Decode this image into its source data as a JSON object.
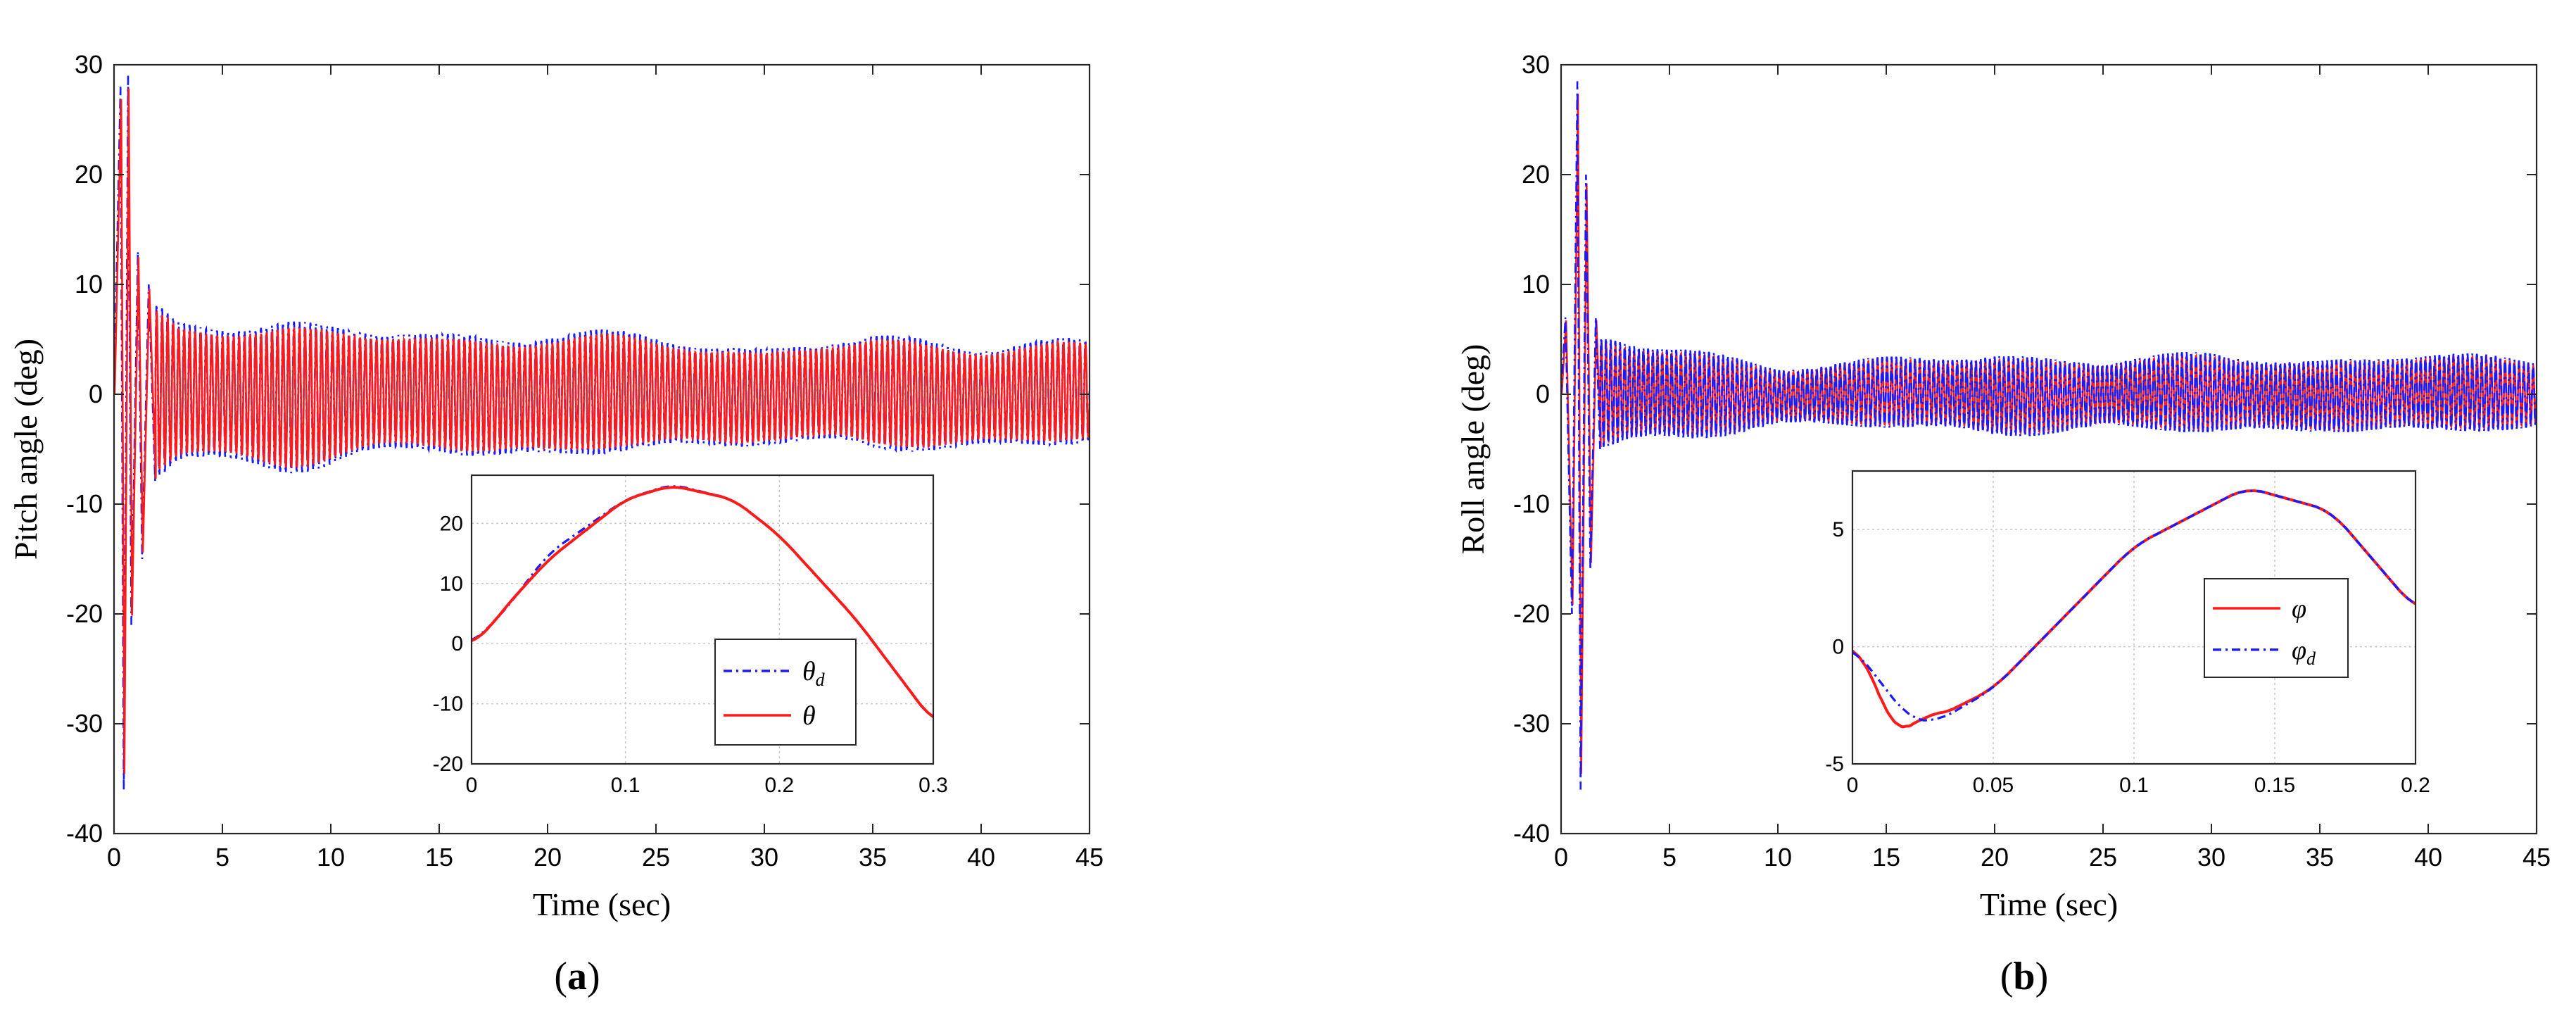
{
  "chart_data": [
    {
      "type": "line",
      "panel": "a",
      "caption_letter": "a",
      "xlabel": "Time (sec)",
      "ylabel": "Pitch angle (deg)",
      "xlim": [
        0,
        45
      ],
      "ylim": [
        -40,
        30
      ],
      "xticks": [
        "0",
        "5",
        "10",
        "15",
        "20",
        "25",
        "30",
        "35",
        "40",
        "45"
      ],
      "yticks": [
        "-40",
        "-30",
        "-20",
        "-10",
        "0",
        "10",
        "20",
        "30"
      ],
      "grid": false,
      "signal": {
        "description": "oscillation",
        "initial_spikes": [
          [
            0.3,
            28
          ],
          [
            0.45,
            -36
          ],
          [
            0.65,
            29
          ],
          [
            0.8,
            -21
          ],
          [
            1.1,
            13
          ],
          [
            1.3,
            -15
          ],
          [
            1.6,
            10
          ],
          [
            1.9,
            -8
          ]
        ],
        "envelope": [
          [
            3,
            6
          ],
          [
            8,
            6.5
          ],
          [
            15,
            5
          ],
          [
            20,
            5.5
          ],
          [
            25,
            5
          ],
          [
            30,
            4
          ],
          [
            35,
            5
          ],
          [
            40,
            4.5
          ],
          [
            45,
            4.5
          ]
        ],
        "cycles": 170
      },
      "series": [
        {
          "name": "θd",
          "label_base": "θ",
          "label_sub": "d",
          "color": "#1a1aff",
          "style": "dashdot"
        },
        {
          "name": "θ",
          "label_base": "θ",
          "label_sub": "",
          "color": "#ff1a1a",
          "style": "solid"
        }
      ],
      "inset": {
        "xlim": [
          0,
          0.3
        ],
        "ylim": [
          -20,
          28
        ],
        "xticks": [
          "0",
          "0.1",
          "0.2",
          "0.3"
        ],
        "yticks": [
          "-20",
          "-10",
          "0",
          "10",
          "20"
        ],
        "grid": true,
        "legend_position": "lower-right",
        "desired_points": [
          [
            0,
            0
          ],
          [
            0.02,
            5
          ],
          [
            0.05,
            15
          ],
          [
            0.1,
            24
          ],
          [
            0.13,
            26.5
          ],
          [
            0.17,
            24
          ],
          [
            0.2,
            18
          ],
          [
            0.25,
            4
          ],
          [
            0.3,
            -13
          ]
        ],
        "actual_points": [
          [
            0,
            0
          ],
          [
            0.01,
            2
          ],
          [
            0.02,
            5.5
          ],
          [
            0.05,
            14
          ],
          [
            0.1,
            24
          ],
          [
            0.13,
            26.3
          ],
          [
            0.17,
            24
          ],
          [
            0.2,
            18
          ],
          [
            0.25,
            4
          ],
          [
            0.3,
            -13
          ]
        ]
      }
    },
    {
      "type": "line",
      "panel": "b",
      "caption_letter": "b",
      "xlabel": "Time (sec)",
      "ylabel": "Roll angle (deg)",
      "xlim": [
        0,
        45
      ],
      "ylim": [
        -40,
        30
      ],
      "xticks": [
        "0",
        "5",
        "10",
        "15",
        "20",
        "25",
        "30",
        "35",
        "40",
        "45"
      ],
      "yticks": [
        "-40",
        "-30",
        "-20",
        "-10",
        "0",
        "10",
        "20",
        "30"
      ],
      "grid": false,
      "signal": {
        "description": "oscillation",
        "initial_spikes": [
          [
            0.2,
            7
          ],
          [
            0.5,
            -20
          ],
          [
            0.75,
            28.5
          ],
          [
            0.9,
            -36
          ],
          [
            1.15,
            20
          ],
          [
            1.35,
            -16
          ],
          [
            1.6,
            7
          ],
          [
            1.8,
            -5
          ]
        ],
        "envelope": [
          [
            3,
            4.5
          ],
          [
            6,
            4
          ],
          [
            10,
            2.5
          ],
          [
            15,
            3
          ],
          [
            20,
            3.5
          ],
          [
            25,
            3
          ],
          [
            30,
            3.5
          ],
          [
            35,
            3
          ],
          [
            40,
            3.5
          ],
          [
            45,
            3
          ]
        ],
        "cycles": 200
      },
      "series": [
        {
          "name": "φ",
          "label_base": "φ",
          "label_sub": "",
          "color": "#ff1a1a",
          "style": "solid"
        },
        {
          "name": "φd",
          "label_base": "φ",
          "label_sub": "d",
          "color": "#1a1aff",
          "style": "dashdot"
        }
      ],
      "inset": {
        "xlim": [
          0,
          0.2
        ],
        "ylim": [
          -5,
          7.5
        ],
        "xticks": [
          "0",
          "0.05",
          "0.1",
          "0.15",
          "0.2"
        ],
        "yticks": [
          "-5",
          "0",
          "5"
        ],
        "grid": true,
        "legend_position": "center-right",
        "desired_points": [
          [
            0,
            0
          ],
          [
            0.01,
            -1.5
          ],
          [
            0.02,
            -3.1
          ],
          [
            0.03,
            -3.2
          ],
          [
            0.05,
            -1.8
          ],
          [
            0.1,
            4.3
          ],
          [
            0.14,
            6.8
          ],
          [
            0.17,
            5.8
          ],
          [
            0.2,
            1.6
          ]
        ],
        "actual_points": [
          [
            0,
            0
          ],
          [
            0.005,
            -0.5
          ],
          [
            0.015,
            -3.9
          ],
          [
            0.02,
            -3.5
          ],
          [
            0.025,
            -2.8
          ],
          [
            0.03,
            -3.0
          ],
          [
            0.035,
            -2.7
          ],
          [
            0.05,
            -1.8
          ],
          [
            0.1,
            4.3
          ],
          [
            0.14,
            6.8
          ],
          [
            0.17,
            5.8
          ],
          [
            0.2,
            1.6
          ]
        ]
      }
    }
  ]
}
